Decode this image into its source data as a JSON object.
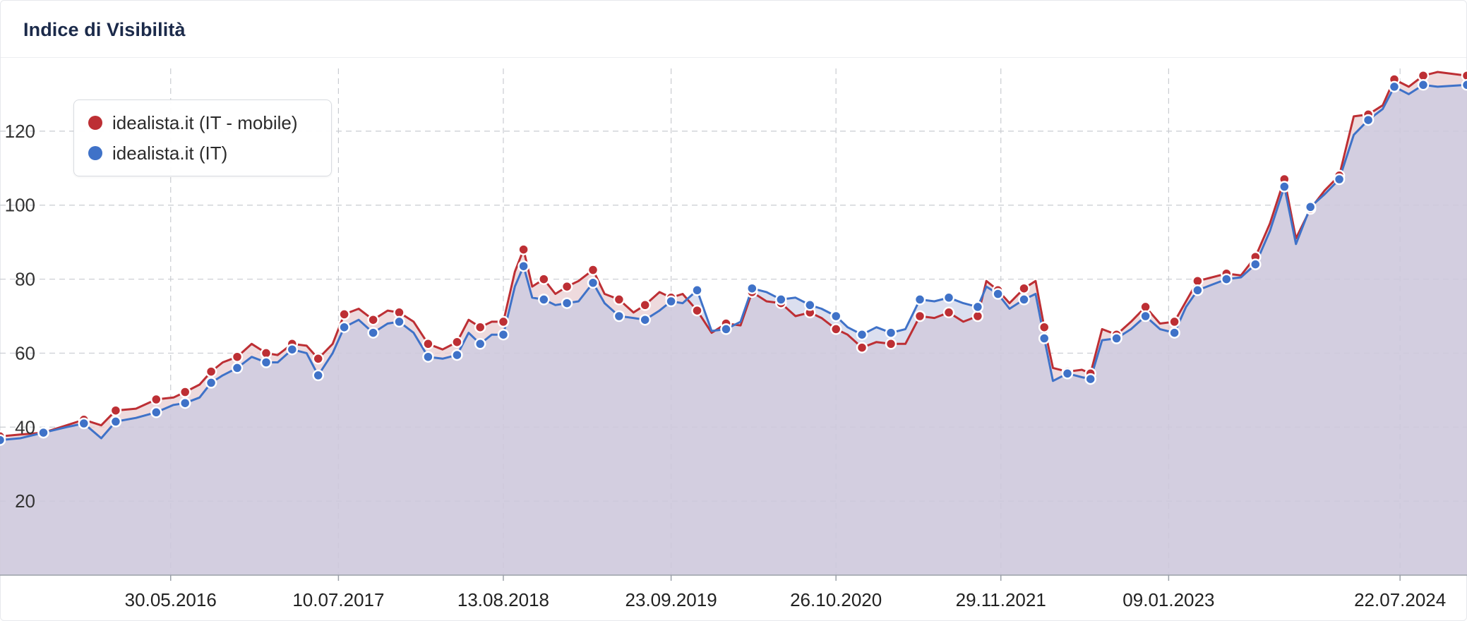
{
  "card": {
    "title": "Indice di Visibilità"
  },
  "chart_data": {
    "type": "area",
    "title": "Indice di Visibilità",
    "xlabel": "",
    "ylabel": "",
    "x_range": [
      "2015-04-13",
      "2024-12-31"
    ],
    "ylim": [
      0,
      140
    ],
    "y_ticks": [
      20,
      40,
      60,
      80,
      100,
      120
    ],
    "x_ticks": [
      "30.05.2016",
      "10.07.2017",
      "13.08.2018",
      "23.09.2019",
      "26.10.2020",
      "29.11.2021",
      "09.01.2023",
      "22.07.2024"
    ],
    "grid": true,
    "legend_position": "top-left",
    "series": [
      {
        "name": "idealista.it (IT - mobile)",
        "color": "#bd2f34",
        "points": [
          [
            "2015-04-13",
            37.5
          ],
          [
            "2015-06-01",
            38.0
          ],
          [
            "2015-07-27",
            38.5
          ],
          [
            "2015-09-21",
            40.5
          ],
          [
            "2015-11-02",
            42.0
          ],
          [
            "2015-12-14",
            40.5
          ],
          [
            "2016-01-18",
            44.5
          ],
          [
            "2016-03-07",
            45.0
          ],
          [
            "2016-04-25",
            47.5
          ],
          [
            "2016-06-06",
            48.0
          ],
          [
            "2016-07-04",
            49.5
          ],
          [
            "2016-08-08",
            51.5
          ],
          [
            "2016-09-05",
            55.0
          ],
          [
            "2016-10-03",
            57.5
          ],
          [
            "2016-11-07",
            59.0
          ],
          [
            "2016-12-12",
            62.5
          ],
          [
            "2017-01-16",
            60.0
          ],
          [
            "2017-02-13",
            59.5
          ],
          [
            "2017-03-20",
            62.5
          ],
          [
            "2017-04-24",
            62.0
          ],
          [
            "2017-05-22",
            58.5
          ],
          [
            "2017-06-26",
            62.5
          ],
          [
            "2017-07-24",
            70.5
          ],
          [
            "2017-08-28",
            72.0
          ],
          [
            "2017-10-02",
            69.0
          ],
          [
            "2017-11-06",
            71.5
          ],
          [
            "2017-12-04",
            71.0
          ],
          [
            "2018-01-08",
            68.5
          ],
          [
            "2018-02-12",
            62.5
          ],
          [
            "2018-03-19",
            61.0
          ],
          [
            "2018-04-23",
            63.0
          ],
          [
            "2018-05-21",
            69.0
          ],
          [
            "2018-06-18",
            67.0
          ],
          [
            "2018-07-16",
            68.5
          ],
          [
            "2018-08-13",
            68.5
          ],
          [
            "2018-09-10",
            82.0
          ],
          [
            "2018-10-01",
            88.0
          ],
          [
            "2018-10-22",
            78.0
          ],
          [
            "2018-11-19",
            80.0
          ],
          [
            "2018-12-17",
            76.0
          ],
          [
            "2019-01-14",
            78.0
          ],
          [
            "2019-02-11",
            79.5
          ],
          [
            "2019-03-18",
            82.5
          ],
          [
            "2019-04-15",
            76.0
          ],
          [
            "2019-05-20",
            74.5
          ],
          [
            "2019-06-24",
            71.0
          ],
          [
            "2019-07-22",
            73.0
          ],
          [
            "2019-08-26",
            76.5
          ],
          [
            "2019-09-23",
            75.0
          ],
          [
            "2019-10-21",
            76.0
          ],
          [
            "2019-11-25",
            71.5
          ],
          [
            "2019-12-30",
            65.5
          ],
          [
            "2020-02-03",
            68.0
          ],
          [
            "2020-03-09",
            67.5
          ],
          [
            "2020-04-06",
            76.5
          ],
          [
            "2020-05-11",
            74.0
          ],
          [
            "2020-06-15",
            73.5
          ],
          [
            "2020-07-20",
            70.0
          ],
          [
            "2020-08-24",
            71.0
          ],
          [
            "2020-09-21",
            69.5
          ],
          [
            "2020-10-26",
            66.5
          ],
          [
            "2020-11-23",
            65.0
          ],
          [
            "2020-12-28",
            61.5
          ],
          [
            "2021-02-01",
            63.0
          ],
          [
            "2021-03-08",
            62.5
          ],
          [
            "2021-04-12",
            62.5
          ],
          [
            "2021-05-17",
            70.0
          ],
          [
            "2021-06-21",
            69.5
          ],
          [
            "2021-07-26",
            71.0
          ],
          [
            "2021-08-30",
            68.5
          ],
          [
            "2021-10-04",
            70.0
          ],
          [
            "2021-10-25",
            79.5
          ],
          [
            "2021-11-22",
            77.0
          ],
          [
            "2021-12-20",
            73.5
          ],
          [
            "2022-01-24",
            77.5
          ],
          [
            "2022-02-21",
            79.5
          ],
          [
            "2022-03-14",
            67.0
          ],
          [
            "2022-04-04",
            56.0
          ],
          [
            "2022-05-09",
            55.0
          ],
          [
            "2022-06-13",
            55.5
          ],
          [
            "2022-07-04",
            54.5
          ],
          [
            "2022-08-01",
            66.5
          ],
          [
            "2022-09-05",
            65.0
          ],
          [
            "2022-10-10",
            68.5
          ],
          [
            "2022-11-14",
            72.5
          ],
          [
            "2022-12-19",
            68.0
          ],
          [
            "2023-01-23",
            68.5
          ],
          [
            "2023-02-20",
            74.0
          ],
          [
            "2023-03-20",
            79.5
          ],
          [
            "2023-04-24",
            80.5
          ],
          [
            "2023-05-29",
            81.5
          ],
          [
            "2023-07-03",
            81.0
          ],
          [
            "2023-08-07",
            86.0
          ],
          [
            "2023-09-11",
            95.0
          ],
          [
            "2023-10-16",
            107.0
          ],
          [
            "2023-11-13",
            91.0
          ],
          [
            "2023-12-18",
            99.0
          ],
          [
            "2024-01-22",
            104.0
          ],
          [
            "2024-02-26",
            108.0
          ],
          [
            "2024-04-01",
            124.0
          ],
          [
            "2024-05-06",
            124.5
          ],
          [
            "2024-06-10",
            127.0
          ],
          [
            "2024-07-08",
            134.0
          ],
          [
            "2024-08-12",
            132.0
          ],
          [
            "2024-09-16",
            135.0
          ],
          [
            "2024-10-21",
            136.0
          ],
          [
            "2024-12-31",
            135.0
          ]
        ]
      },
      {
        "name": "idealista.it (IT)",
        "color": "#3f72c8",
        "points": [
          [
            "2015-04-13",
            36.5
          ],
          [
            "2015-06-01",
            37.0
          ],
          [
            "2015-07-27",
            38.5
          ],
          [
            "2015-09-21",
            40.0
          ],
          [
            "2015-11-02",
            41.0
          ],
          [
            "2015-12-14",
            37.0
          ],
          [
            "2016-01-18",
            41.5
          ],
          [
            "2016-03-07",
            42.5
          ],
          [
            "2016-04-25",
            44.0
          ],
          [
            "2016-06-06",
            46.0
          ],
          [
            "2016-07-04",
            46.5
          ],
          [
            "2016-08-08",
            48.0
          ],
          [
            "2016-09-05",
            52.0
          ],
          [
            "2016-10-03",
            54.0
          ],
          [
            "2016-11-07",
            56.0
          ],
          [
            "2016-12-12",
            59.0
          ],
          [
            "2017-01-16",
            57.5
          ],
          [
            "2017-02-13",
            57.5
          ],
          [
            "2017-03-20",
            61.0
          ],
          [
            "2017-04-24",
            60.0
          ],
          [
            "2017-05-22",
            54.0
          ],
          [
            "2017-06-26",
            60.0
          ],
          [
            "2017-07-24",
            67.0
          ],
          [
            "2017-08-28",
            69.0
          ],
          [
            "2017-10-02",
            65.5
          ],
          [
            "2017-11-06",
            68.0
          ],
          [
            "2017-12-04",
            68.5
          ],
          [
            "2018-01-08",
            65.5
          ],
          [
            "2018-02-12",
            59.0
          ],
          [
            "2018-03-19",
            58.5
          ],
          [
            "2018-04-23",
            59.5
          ],
          [
            "2018-05-21",
            65.5
          ],
          [
            "2018-06-18",
            62.5
          ],
          [
            "2018-07-16",
            65.0
          ],
          [
            "2018-08-13",
            65.0
          ],
          [
            "2018-09-10",
            78.0
          ],
          [
            "2018-10-01",
            83.5
          ],
          [
            "2018-10-22",
            75.0
          ],
          [
            "2018-11-19",
            74.5
          ],
          [
            "2018-12-17",
            73.0
          ],
          [
            "2019-01-14",
            73.5
          ],
          [
            "2019-02-11",
            74.0
          ],
          [
            "2019-03-18",
            79.0
          ],
          [
            "2019-04-15",
            73.5
          ],
          [
            "2019-05-20",
            70.0
          ],
          [
            "2019-06-24",
            69.5
          ],
          [
            "2019-07-22",
            69.0
          ],
          [
            "2019-08-26",
            71.5
          ],
          [
            "2019-09-23",
            74.0
          ],
          [
            "2019-10-21",
            73.5
          ],
          [
            "2019-11-25",
            77.0
          ],
          [
            "2019-12-30",
            66.0
          ],
          [
            "2020-02-03",
            66.5
          ],
          [
            "2020-03-09",
            68.5
          ],
          [
            "2020-04-06",
            77.5
          ],
          [
            "2020-05-11",
            76.5
          ],
          [
            "2020-06-15",
            74.5
          ],
          [
            "2020-07-20",
            75.0
          ],
          [
            "2020-08-24",
            73.0
          ],
          [
            "2020-09-21",
            72.0
          ],
          [
            "2020-10-26",
            70.0
          ],
          [
            "2020-11-23",
            67.0
          ],
          [
            "2020-12-28",
            65.0
          ],
          [
            "2021-02-01",
            67.0
          ],
          [
            "2021-03-08",
            65.5
          ],
          [
            "2021-04-12",
            66.5
          ],
          [
            "2021-05-17",
            74.5
          ],
          [
            "2021-06-21",
            74.0
          ],
          [
            "2021-07-26",
            75.0
          ],
          [
            "2021-08-30",
            73.5
          ],
          [
            "2021-10-04",
            72.5
          ],
          [
            "2021-10-25",
            78.0
          ],
          [
            "2021-11-22",
            76.0
          ],
          [
            "2021-12-20",
            72.0
          ],
          [
            "2022-01-24",
            74.5
          ],
          [
            "2022-02-21",
            76.0
          ],
          [
            "2022-03-14",
            64.0
          ],
          [
            "2022-04-04",
            52.5
          ],
          [
            "2022-05-09",
            54.5
          ],
          [
            "2022-06-13",
            53.5
          ],
          [
            "2022-07-04",
            53.0
          ],
          [
            "2022-08-01",
            63.5
          ],
          [
            "2022-09-05",
            64.0
          ],
          [
            "2022-10-10",
            66.5
          ],
          [
            "2022-11-14",
            70.0
          ],
          [
            "2022-12-19",
            66.5
          ],
          [
            "2023-01-23",
            65.5
          ],
          [
            "2023-02-20",
            72.5
          ],
          [
            "2023-03-20",
            77.0
          ],
          [
            "2023-04-24",
            78.5
          ],
          [
            "2023-05-29",
            80.0
          ],
          [
            "2023-07-03",
            80.5
          ],
          [
            "2023-08-07",
            84.0
          ],
          [
            "2023-09-11",
            93.0
          ],
          [
            "2023-10-16",
            105.0
          ],
          [
            "2023-11-13",
            89.5
          ],
          [
            "2023-12-18",
            99.5
          ],
          [
            "2024-01-22",
            103.0
          ],
          [
            "2024-02-26",
            107.0
          ],
          [
            "2024-04-01",
            119.0
          ],
          [
            "2024-05-06",
            123.0
          ],
          [
            "2024-06-10",
            126.0
          ],
          [
            "2024-07-08",
            132.0
          ],
          [
            "2024-08-12",
            130.0
          ],
          [
            "2024-09-16",
            132.5
          ],
          [
            "2024-10-21",
            132.0
          ],
          [
            "2024-12-31",
            132.5
          ]
        ]
      }
    ]
  }
}
